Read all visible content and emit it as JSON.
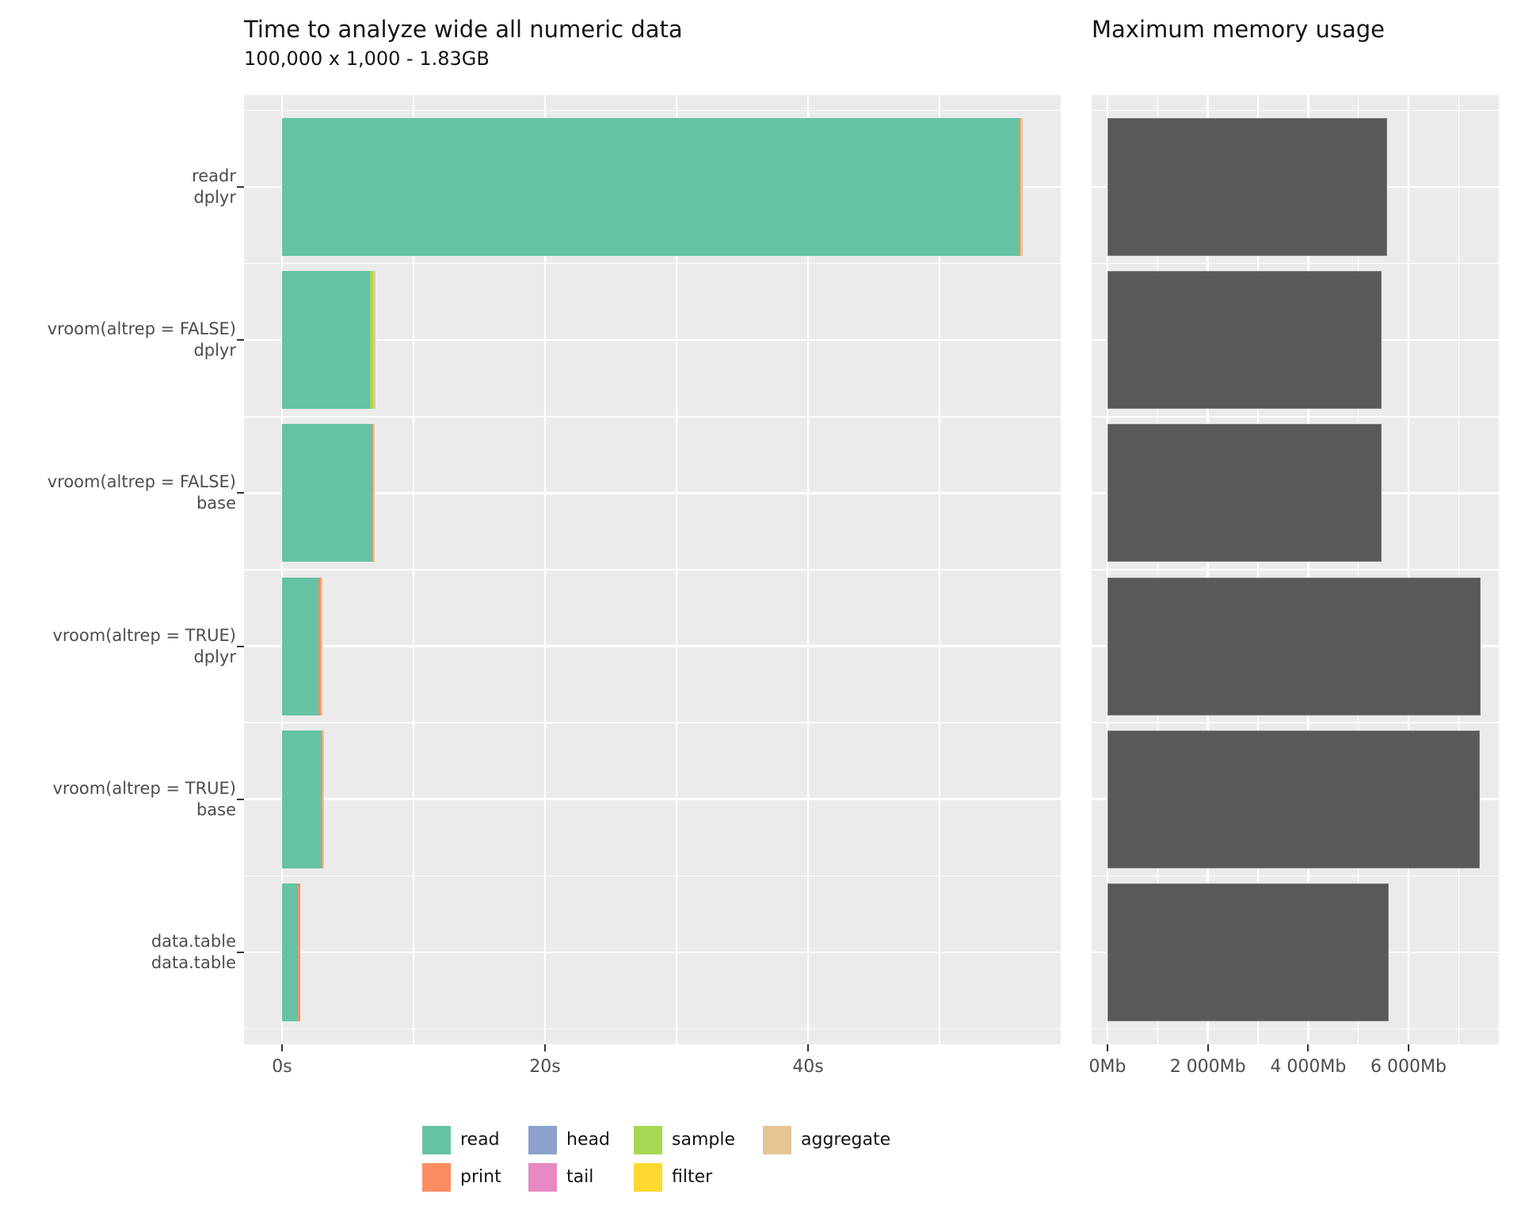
{
  "colors": {
    "read": "#66C2A5",
    "print": "#FC8D62",
    "head": "#8DA0CB",
    "tail": "#E78AC3",
    "sample": "#A6D854",
    "filter": "#FFD92F",
    "aggregate": "#E5C494",
    "memory_bar": "#595959",
    "panel_bg": "#EBEBEB",
    "grid": "#FFFFFF",
    "tick": "#333333",
    "axis_text": "#4D4D4D",
    "title_text": "#141414"
  },
  "legend": {
    "columns": [
      [
        "read",
        "print"
      ],
      [
        "head",
        "tail"
      ],
      [
        "sample",
        "filter"
      ],
      [
        "aggregate"
      ]
    ]
  },
  "chart_data": [
    {
      "type": "bar",
      "orientation": "horizontal",
      "stacked": true,
      "title": "Time to analyze wide all numeric data",
      "subtitle": "100,000 x 1,000 - 1.83GB",
      "unit": "seconds",
      "categories": [
        [
          "readr",
          "dplyr"
        ],
        [
          "vroom(altrep = FALSE)",
          "dplyr"
        ],
        [
          "vroom(altrep = FALSE)",
          "base"
        ],
        [
          "vroom(altrep = TRUE)",
          "dplyr"
        ],
        [
          "vroom(altrep = TRUE)",
          "base"
        ],
        [
          "data.table",
          "data.table"
        ]
      ],
      "series": [
        {
          "name": "read",
          "values": [
            56.0,
            6.7,
            6.85,
            2.8,
            2.95,
            1.2
          ]
        },
        {
          "name": "print",
          "values": [
            0.12,
            0,
            0.1,
            0.15,
            0.15,
            0.2
          ]
        },
        {
          "name": "head",
          "values": [
            0,
            0,
            0,
            0,
            0,
            0
          ]
        },
        {
          "name": "tail",
          "values": [
            0,
            0,
            0,
            0,
            0,
            0
          ]
        },
        {
          "name": "sample",
          "values": [
            0,
            0.2,
            0,
            0,
            0,
            0
          ]
        },
        {
          "name": "filter",
          "values": [
            0,
            0,
            0,
            0,
            0,
            0
          ]
        },
        {
          "name": "aggregate",
          "values": [
            0.2,
            0.2,
            0.1,
            0.15,
            0.1,
            0
          ]
        }
      ],
      "x_ticks": [
        {
          "value": 0,
          "label": "0s"
        },
        {
          "value": 20,
          "label": "20s"
        },
        {
          "value": 40,
          "label": "40s"
        }
      ],
      "x_minor": [
        10,
        30,
        50
      ],
      "xlim": [
        0,
        56.4
      ],
      "grid": true,
      "legend_position": "bottom"
    },
    {
      "type": "bar",
      "orientation": "horizontal",
      "title": "Maximum memory usage",
      "unit": "Mb",
      "categories": [
        [
          "readr",
          "dplyr"
        ],
        [
          "vroom(altrep = FALSE)",
          "dplyr"
        ],
        [
          "vroom(altrep = FALSE)",
          "base"
        ],
        [
          "vroom(altrep = TRUE)",
          "dplyr"
        ],
        [
          "vroom(altrep = TRUE)",
          "base"
        ],
        [
          "data.table",
          "data.table"
        ]
      ],
      "values": [
        5580,
        5470,
        5460,
        7430,
        7420,
        5610
      ],
      "x_ticks": [
        {
          "value": 0,
          "label": "0Mb"
        },
        {
          "value": 2000,
          "label": "2 000Mb"
        },
        {
          "value": 4000,
          "label": "4 000Mb"
        },
        {
          "value": 6000,
          "label": "6 000Mb"
        }
      ],
      "x_minor": [
        1000,
        3000,
        5000,
        7000
      ],
      "xlim": [
        0,
        7430
      ],
      "grid": true
    }
  ]
}
